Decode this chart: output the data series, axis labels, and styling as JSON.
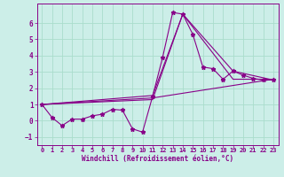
{
  "line1_x": [
    0,
    1,
    2,
    3,
    4,
    5,
    6,
    7,
    8,
    9,
    10,
    11,
    12,
    13,
    14,
    15,
    16,
    17,
    18,
    19,
    20,
    21,
    22,
    23
  ],
  "line1_y": [
    1.0,
    0.2,
    -0.3,
    0.1,
    0.1,
    0.3,
    0.4,
    0.7,
    0.65,
    -0.5,
    -0.7,
    1.5,
    3.9,
    6.65,
    6.55,
    5.3,
    3.3,
    3.2,
    2.55,
    3.05,
    2.8,
    2.6,
    2.5,
    2.5
  ],
  "line2_x": [
    0,
    11,
    23
  ],
  "line2_y": [
    1.0,
    1.4,
    2.55
  ],
  "line3_x": [
    0,
    11,
    14,
    19,
    23
  ],
  "line3_y": [
    1.0,
    1.3,
    6.55,
    3.05,
    2.5
  ],
  "line4_x": [
    0,
    11,
    14,
    19,
    23
  ],
  "line4_y": [
    1.0,
    1.55,
    6.55,
    2.55,
    2.55
  ],
  "color": "#880088",
  "background_color": "#cceee8",
  "grid_color": "#aaddcc",
  "xlabel": "Windchill (Refroidissement éolien,°C)",
  "xlim": [
    -0.5,
    23.5
  ],
  "ylim": [
    -1.5,
    7.2
  ],
  "yticks": [
    -1,
    0,
    1,
    2,
    3,
    4,
    5,
    6
  ],
  "xticks": [
    0,
    1,
    2,
    3,
    4,
    5,
    6,
    7,
    8,
    9,
    10,
    11,
    12,
    13,
    14,
    15,
    16,
    17,
    18,
    19,
    20,
    21,
    22,
    23
  ]
}
